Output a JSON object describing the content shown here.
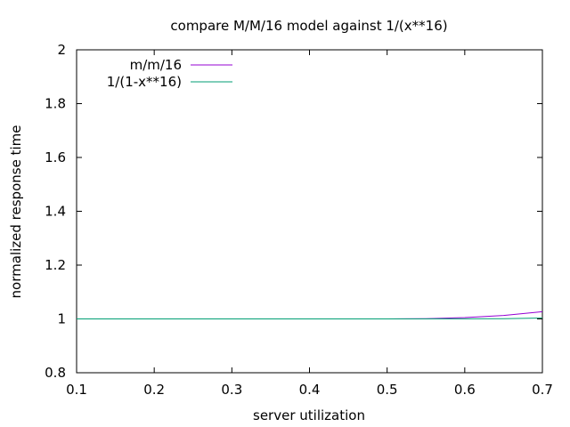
{
  "chart_data": {
    "type": "line",
    "title": "compare M/M/16 model against 1/(x**16)",
    "xlabel": "server utilization",
    "ylabel": "normalized response time",
    "xlim": [
      0.1,
      0.7
    ],
    "ylim": [
      0.8,
      2
    ],
    "xticks": [
      0.1,
      0.2,
      0.3,
      0.4,
      0.5,
      0.6,
      0.7
    ],
    "xtick_labels": [
      "0.1",
      "0.2",
      "0.3",
      "0.4",
      "0.5",
      "0.6",
      "0.7"
    ],
    "yticks": [
      0.8,
      1,
      1.2,
      1.4,
      1.6,
      1.8,
      2
    ],
    "ytick_labels": [
      "0.8",
      "1",
      "1.2",
      "1.4",
      "1.6",
      "1.8",
      "2"
    ],
    "grid": false,
    "legend_position": "top-left",
    "series": [
      {
        "name": "m/m/16",
        "color": "#9400d3",
        "x": [
          0.1,
          0.2,
          0.3,
          0.4,
          0.45,
          0.5,
          0.55,
          0.6,
          0.65,
          0.7
        ],
        "y": [
          1.0,
          1.0,
          1.0,
          1.0,
          1.0,
          1.0,
          1.001,
          1.005,
          1.013,
          1.027
        ]
      },
      {
        "name": "1/(1-x**16)",
        "color": "#009e73",
        "x": [
          0.1,
          0.2,
          0.3,
          0.4,
          0.5,
          0.6,
          0.65,
          0.7
        ],
        "y": [
          1.0,
          1.0,
          1.0,
          1.0,
          1.0,
          1.0003,
          1.001,
          1.0033
        ]
      }
    ]
  }
}
